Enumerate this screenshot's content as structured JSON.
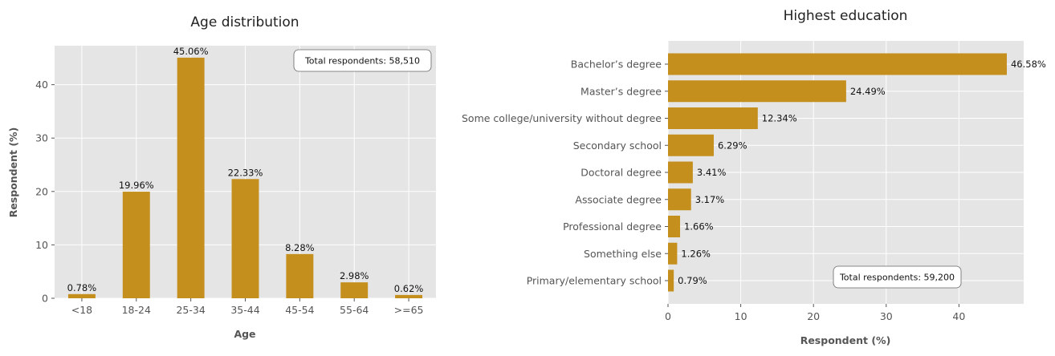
{
  "chart_data": [
    {
      "type": "bar",
      "title": "Age distribution",
      "xlabel": "Age",
      "ylabel": "Respondent (%)",
      "categories": [
        "<18",
        "18-24",
        "25-34",
        "35-44",
        "45-54",
        "55-64",
        ">=65"
      ],
      "values": [
        0.78,
        19.96,
        45.06,
        22.33,
        8.28,
        2.98,
        0.62
      ],
      "value_labels": [
        "0.78%",
        "19.96%",
        "45.06%",
        "22.33%",
        "8.28%",
        "2.98%",
        "0.62%"
      ],
      "yticks": [
        0,
        10,
        20,
        30,
        40
      ],
      "ylim": [
        0,
        47.3
      ],
      "annotation": "Total respondents: 58,510",
      "annotation_position": "top-right",
      "bar_color": "#c48f1c",
      "background": "#e5e5e5",
      "grid": true
    },
    {
      "type": "bar",
      "orientation": "horizontal",
      "title": "Highest education",
      "xlabel": "Respondent (%)",
      "ylabel": "",
      "categories": [
        "Bachelor’s degree",
        "Master’s degree",
        "Some college/university without degree",
        "Secondary school",
        "Doctoral degree",
        "Associate degree",
        "Professional degree",
        "Something else",
        "Primary/elementary school"
      ],
      "values": [
        46.58,
        24.49,
        12.34,
        6.29,
        3.41,
        3.17,
        1.66,
        1.26,
        0.79
      ],
      "value_labels": [
        "46.58%",
        "24.49%",
        "12.34%",
        "6.29%",
        "3.41%",
        "3.17%",
        "1.66%",
        "1.26%",
        "0.79%"
      ],
      "xticks": [
        0,
        10,
        20,
        30,
        40
      ],
      "xlim": [
        0,
        48.9
      ],
      "annotation": "Total respondents: 59,200",
      "annotation_position": "bottom-right",
      "bar_color": "#c48f1c",
      "background": "#e5e5e5",
      "grid": true
    }
  ]
}
